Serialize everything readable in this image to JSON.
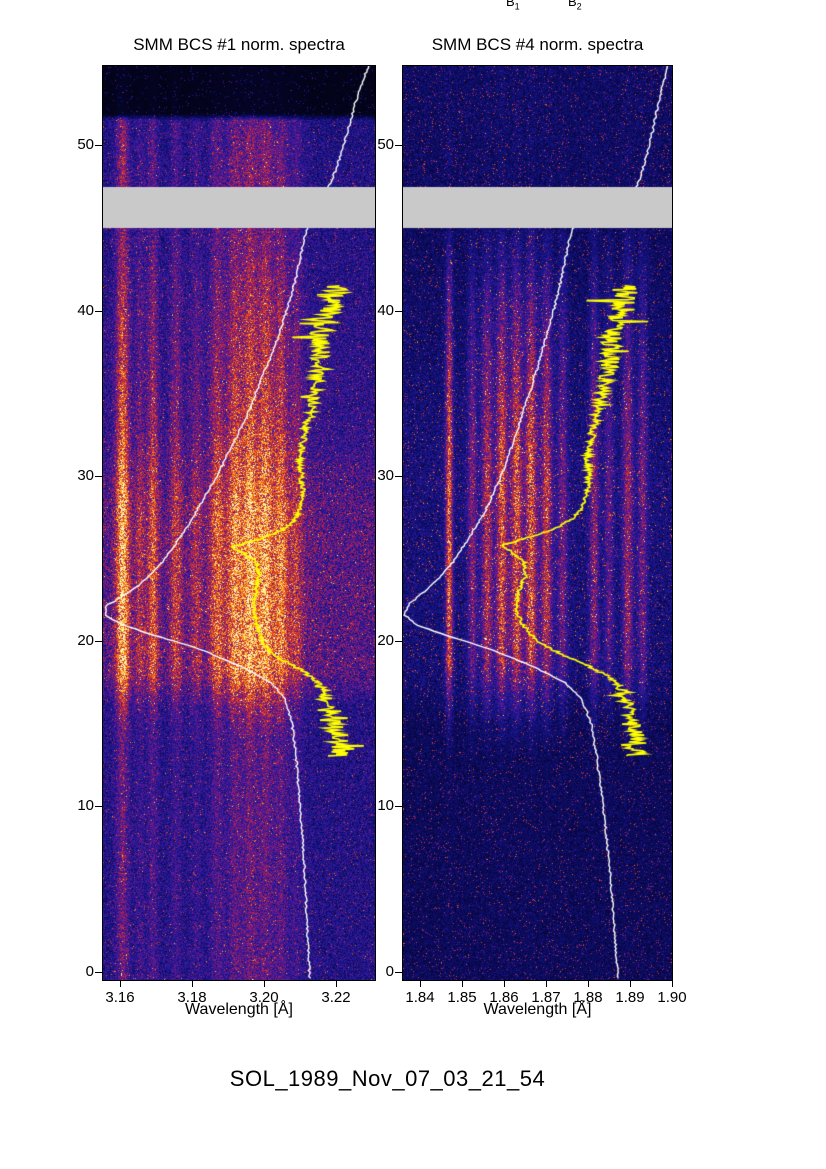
{
  "figure": {
    "caption": "SOL_1989_Nov_07_03_21_54",
    "top_labels": [
      {
        "base": "B",
        "sub": "1"
      },
      {
        "base": "B",
        "sub": "2"
      }
    ]
  },
  "palette": [
    [
      0.0,
      "#020208"
    ],
    [
      0.16,
      "#080850"
    ],
    [
      0.32,
      "#1c1896"
    ],
    [
      0.46,
      "#5f1894"
    ],
    [
      0.58,
      "#aa2350"
    ],
    [
      0.7,
      "#e1411e"
    ],
    [
      0.82,
      "#fa8c1e"
    ],
    [
      0.92,
      "#ffc83c"
    ],
    [
      1.0,
      "#fffab4"
    ]
  ],
  "chart_data": [
    {
      "type": "heatmap",
      "title": "SMM BCS #1 norm. spectra",
      "xlabel": "Wavelength [Å]",
      "ylabel": "",
      "xlim": [
        3.1553,
        3.2309
      ],
      "ylim": [
        -0.5,
        54.8
      ],
      "xticks": [
        3.16,
        3.18,
        3.2,
        3.22
      ],
      "xtick_labels": [
        "3.16",
        "3.18",
        "3.20",
        "3.22"
      ],
      "yticks": [
        0,
        10,
        20,
        30,
        40,
        50
      ],
      "ytick_labels": [
        "0",
        "10",
        "20",
        "30",
        "40",
        "50"
      ],
      "masked_band": {
        "y_from": 45.0,
        "y_to": 47.5,
        "color": "#c9c9c9"
      },
      "speckle": {
        "prob": 0.035,
        "amp": 0.3
      },
      "background_profile": [
        [
          -0.5,
          0.3
        ],
        [
          16,
          0.3
        ],
        [
          18,
          0.42
        ],
        [
          28,
          0.42
        ],
        [
          33,
          0.34
        ],
        [
          45,
          0.3
        ],
        [
          47.5,
          0.3
        ],
        [
          51.5,
          0.28
        ],
        [
          51.9,
          0.04
        ],
        [
          54.8,
          0.04
        ]
      ],
      "line_profile": [
        [
          -0.5,
          0.35
        ],
        [
          14,
          0.35
        ],
        [
          16,
          0.6
        ],
        [
          18.5,
          1.0
        ],
        [
          27,
          1.0
        ],
        [
          34,
          0.75
        ],
        [
          42,
          0.55
        ],
        [
          45,
          0.45
        ],
        [
          47.5,
          0.5
        ],
        [
          51.5,
          0.45
        ],
        [
          51.9,
          0.06
        ],
        [
          54.8,
          0.05
        ]
      ],
      "emission_lines": [
        {
          "w": 3.1608,
          "a": 0.5,
          "s": 0.0013
        },
        {
          "w": 3.1656,
          "a": 0.18,
          "s": 0.001
        },
        {
          "w": 3.1692,
          "a": 0.3,
          "s": 0.0011
        },
        {
          "w": 3.1756,
          "a": 0.22,
          "s": 0.0012
        },
        {
          "w": 3.1812,
          "a": 0.15,
          "s": 0.0012
        },
        {
          "w": 3.187,
          "a": 0.26,
          "s": 0.0014
        },
        {
          "w": 3.192,
          "a": 0.3,
          "s": 0.0014
        },
        {
          "w": 3.1962,
          "a": 0.33,
          "s": 0.0014
        },
        {
          "w": 3.2005,
          "a": 0.32,
          "s": 0.0014
        },
        {
          "w": 3.2048,
          "a": 0.28,
          "s": 0.0013
        },
        {
          "w": 3.209,
          "a": 0.16,
          "s": 0.0012
        },
        {
          "w": 3.198,
          "a": 0.15,
          "s": 0.008
        }
      ],
      "overlays": [
        {
          "name": "lightcurve",
          "color": "#ffffff",
          "line_width": 1.4,
          "step": 0.12,
          "jitter": 0.004,
          "points": [
            [
              -0.5,
              0.76
            ],
            [
              5,
              0.745
            ],
            [
              10,
              0.725
            ],
            [
              13,
              0.71
            ],
            [
              15,
              0.695
            ],
            [
              16.5,
              0.67
            ],
            [
              17.5,
              0.62
            ],
            [
              18.5,
              0.5
            ],
            [
              19.5,
              0.36
            ],
            [
              20.3,
              0.2
            ],
            [
              21.0,
              0.07
            ],
            [
              21.6,
              0.005
            ],
            [
              22.1,
              0.01
            ],
            [
              22.6,
              0.06
            ],
            [
              23.5,
              0.14
            ],
            [
              24.5,
              0.205
            ],
            [
              25.5,
              0.25
            ],
            [
              27,
              0.315
            ],
            [
              28.5,
              0.365
            ],
            [
              30,
              0.42
            ],
            [
              31.5,
              0.465
            ],
            [
              33,
              0.51
            ],
            [
              34.5,
              0.55
            ],
            [
              36,
              0.585
            ],
            [
              37.5,
              0.625
            ],
            [
              39,
              0.655
            ],
            [
              40.5,
              0.685
            ],
            [
              42,
              0.71
            ],
            [
              43.5,
              0.73
            ],
            [
              45,
              0.75
            ],
            [
              47.5,
              0.83
            ],
            [
              48.5,
              0.855
            ],
            [
              50,
              0.885
            ],
            [
              51.5,
              0.91
            ],
            [
              53,
              0.935
            ],
            [
              54.8,
              0.975
            ]
          ]
        },
        {
          "name": "profile-curve",
          "color": "#ffff00",
          "line_width": 1.7,
          "step": 0.06,
          "t_range": [
            13,
            41.5
          ],
          "points": [
            [
              13,
              0.87
            ],
            [
              14,
              0.865
            ],
            [
              15,
              0.85
            ],
            [
              16,
              0.835
            ],
            [
              17,
              0.81
            ],
            [
              17.8,
              0.77
            ],
            [
              18.5,
              0.7
            ],
            [
              19.2,
              0.625
            ],
            [
              20,
              0.585
            ],
            [
              21,
              0.565
            ],
            [
              22,
              0.555
            ],
            [
              23,
              0.56
            ],
            [
              24,
              0.575
            ],
            [
              24.8,
              0.565
            ],
            [
              25.3,
              0.52
            ],
            [
              25.7,
              0.475
            ],
            [
              26.1,
              0.56
            ],
            [
              26.6,
              0.645
            ],
            [
              27.2,
              0.7
            ],
            [
              28,
              0.725
            ],
            [
              29,
              0.735
            ],
            [
              30,
              0.73
            ],
            [
              31,
              0.725
            ],
            [
              32,
              0.735
            ],
            [
              33,
              0.75
            ],
            [
              34,
              0.765
            ],
            [
              35,
              0.775
            ],
            [
              36,
              0.79
            ],
            [
              37,
              0.8
            ],
            [
              38,
              0.795
            ],
            [
              39,
              0.81
            ],
            [
              40,
              0.825
            ],
            [
              41,
              0.84
            ],
            [
              41.5,
              0.845
            ]
          ],
          "noise_profile": [
            [
              13,
              0.05
            ],
            [
              14,
              0.045
            ],
            [
              15,
              0.035
            ],
            [
              16,
              0.028
            ],
            [
              17,
              0.018
            ],
            [
              18,
              0.012
            ],
            [
              19,
              0.009
            ],
            [
              20,
              0.007
            ],
            [
              26,
              0.007
            ],
            [
              29,
              0.009
            ],
            [
              32,
              0.014
            ],
            [
              34,
              0.02
            ],
            [
              36,
              0.03
            ],
            [
              38,
              0.04
            ],
            [
              40,
              0.05
            ],
            [
              41.5,
              0.058
            ]
          ]
        }
      ]
    },
    {
      "type": "heatmap",
      "title": "SMM BCS #4 norm. spectra",
      "xlabel": "Wavelength [Å]",
      "ylabel": "",
      "xlim": [
        1.836,
        1.9
      ],
      "ylim": [
        -0.5,
        54.8
      ],
      "xticks": [
        1.84,
        1.85,
        1.86,
        1.87,
        1.88,
        1.89,
        1.9
      ],
      "xtick_labels": [
        "1.84",
        "1.85",
        "1.86",
        "1.87",
        "1.88",
        "1.89",
        "1.90"
      ],
      "yticks": [
        0,
        10,
        20,
        30,
        40,
        50
      ],
      "ytick_labels": [
        "0",
        "10",
        "20",
        "30",
        "40",
        "50"
      ],
      "masked_band": {
        "y_from": 45.0,
        "y_to": 47.5,
        "color": "#c9c9c9"
      },
      "speckle": {
        "prob": 0.05,
        "amp": 0.38
      },
      "background_profile": [
        [
          -0.5,
          0.18
        ],
        [
          15,
          0.18
        ],
        [
          18,
          0.24
        ],
        [
          30,
          0.26
        ],
        [
          38,
          0.22
        ],
        [
          45,
          0.19
        ],
        [
          47.5,
          0.2
        ],
        [
          54.8,
          0.2
        ]
      ],
      "line_profile": [
        [
          -0.5,
          0.02
        ],
        [
          13,
          0.03
        ],
        [
          15,
          0.25
        ],
        [
          17,
          0.55
        ],
        [
          19,
          0.9
        ],
        [
          21,
          1.0
        ],
        [
          30,
          1.0
        ],
        [
          36,
          0.8
        ],
        [
          40,
          0.6
        ],
        [
          43,
          0.35
        ],
        [
          45,
          0.2
        ],
        [
          47.5,
          0.06
        ],
        [
          54.8,
          0.05
        ]
      ],
      "emission_lines": [
        {
          "w": 1.847,
          "a": 0.45,
          "s": 0.0006
        },
        {
          "w": 1.8525,
          "a": 0.22,
          "s": 0.0008
        },
        {
          "w": 1.856,
          "a": 0.3,
          "s": 0.0009
        },
        {
          "w": 1.8595,
          "a": 0.35,
          "s": 0.0009
        },
        {
          "w": 1.863,
          "a": 0.33,
          "s": 0.0009
        },
        {
          "w": 1.8665,
          "a": 0.35,
          "s": 0.0009
        },
        {
          "w": 1.8702,
          "a": 0.3,
          "s": 0.0009
        },
        {
          "w": 1.874,
          "a": 0.2,
          "s": 0.0008
        },
        {
          "w": 1.8815,
          "a": 0.25,
          "s": 0.0008
        },
        {
          "w": 1.885,
          "a": 0.18,
          "s": 0.0008
        },
        {
          "w": 1.8895,
          "a": 0.28,
          "s": 0.0009
        },
        {
          "w": 1.893,
          "a": 0.22,
          "s": 0.0008
        },
        {
          "w": 1.864,
          "a": 0.1,
          "s": 0.006
        }
      ],
      "overlays": [
        {
          "name": "lightcurve",
          "color": "#ffffff",
          "line_width": 1.4,
          "step": 0.12,
          "jitter": 0.004,
          "points": [
            [
              -0.5,
              0.8
            ],
            [
              5,
              0.775
            ],
            [
              10,
              0.745
            ],
            [
              13,
              0.72
            ],
            [
              15,
              0.7
            ],
            [
              16.5,
              0.665
            ],
            [
              17.5,
              0.6
            ],
            [
              18.5,
              0.48
            ],
            [
              19.5,
              0.33
            ],
            [
              20.3,
              0.17
            ],
            [
              21.0,
              0.05
            ],
            [
              21.6,
              0.005
            ],
            [
              22.2,
              0.02
            ],
            [
              23,
              0.08
            ],
            [
              24,
              0.145
            ],
            [
              25,
              0.195
            ],
            [
              26.5,
              0.255
            ],
            [
              28,
              0.31
            ],
            [
              30,
              0.365
            ],
            [
              32,
              0.41
            ],
            [
              34,
              0.45
            ],
            [
              36,
              0.49
            ],
            [
              38,
              0.525
            ],
            [
              40,
              0.56
            ],
            [
              42,
              0.59
            ],
            [
              44,
              0.615
            ],
            [
              45,
              0.63
            ],
            [
              47.5,
              0.87
            ],
            [
              49,
              0.9
            ],
            [
              51,
              0.93
            ],
            [
              53,
              0.955
            ],
            [
              54.8,
              0.985
            ]
          ]
        },
        {
          "name": "profile-curve",
          "color": "#ffff00",
          "line_width": 1.7,
          "step": 0.06,
          "t_range": [
            13,
            41.5
          ],
          "points": [
            [
              13,
              0.875
            ],
            [
              14,
              0.87
            ],
            [
              15,
              0.855
            ],
            [
              16,
              0.84
            ],
            [
              17,
              0.815
            ],
            [
              17.8,
              0.77
            ],
            [
              18.5,
              0.69
            ],
            [
              19.2,
              0.59
            ],
            [
              20,
              0.5
            ],
            [
              21,
              0.445
            ],
            [
              22,
              0.42
            ],
            [
              23,
              0.43
            ],
            [
              24,
              0.455
            ],
            [
              24.8,
              0.45
            ],
            [
              25.3,
              0.41
            ],
            [
              25.8,
              0.37
            ],
            [
              26.3,
              0.47
            ],
            [
              26.8,
              0.565
            ],
            [
              27.4,
              0.63
            ],
            [
              28,
              0.665
            ],
            [
              29,
              0.685
            ],
            [
              30,
              0.69
            ],
            [
              31,
              0.685
            ],
            [
              32,
              0.695
            ],
            [
              33,
              0.71
            ],
            [
              34,
              0.725
            ],
            [
              35,
              0.74
            ],
            [
              36,
              0.755
            ],
            [
              37,
              0.77
            ],
            [
              38,
              0.775
            ],
            [
              39,
              0.79
            ],
            [
              40,
              0.81
            ],
            [
              41,
              0.825
            ],
            [
              41.5,
              0.83
            ]
          ],
          "noise_profile": [
            [
              13,
              0.05
            ],
            [
              14,
              0.045
            ],
            [
              15,
              0.035
            ],
            [
              16,
              0.028
            ],
            [
              17,
              0.018
            ],
            [
              18,
              0.012
            ],
            [
              19,
              0.009
            ],
            [
              20,
              0.007
            ],
            [
              26,
              0.007
            ],
            [
              29,
              0.009
            ],
            [
              32,
              0.014
            ],
            [
              34,
              0.02
            ],
            [
              36,
              0.03
            ],
            [
              38,
              0.04
            ],
            [
              40,
              0.05
            ],
            [
              41.5,
              0.058
            ]
          ]
        }
      ]
    }
  ]
}
